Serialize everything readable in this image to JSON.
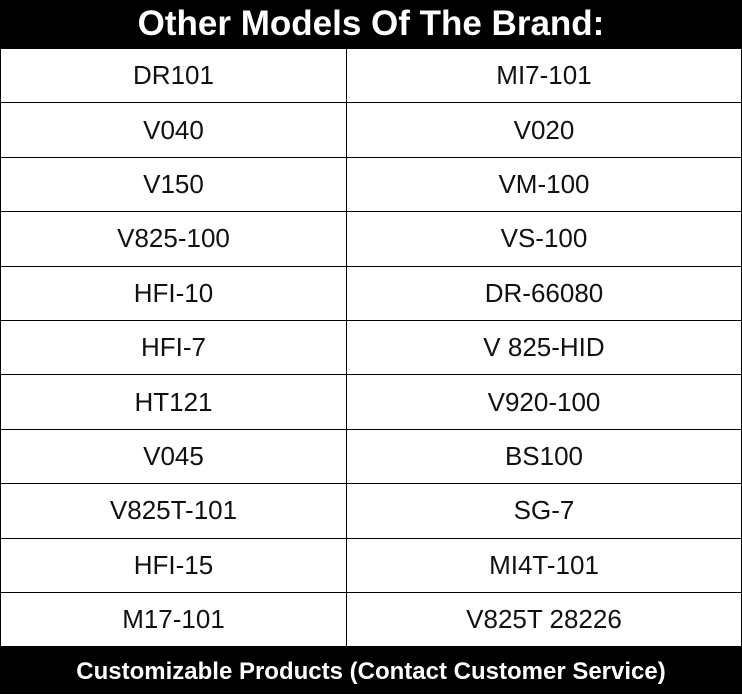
{
  "header": {
    "title": "Other Models Of The Brand:"
  },
  "table": {
    "rows": [
      [
        "DR101",
        "MI7-101"
      ],
      [
        "V040",
        "V020"
      ],
      [
        "V150",
        "VM-100"
      ],
      [
        "V825-100",
        "VS-100"
      ],
      [
        "HFI-10",
        "DR-66080"
      ],
      [
        "HFI-7",
        "V 825-HID"
      ],
      [
        "HT121",
        "V920-100"
      ],
      [
        "V045",
        "BS100"
      ],
      [
        "V825T-101",
        "SG-7"
      ],
      [
        "HFI-15",
        "MI4T-101"
      ],
      [
        "M17-101",
        "V825T 28226"
      ]
    ]
  },
  "footer": {
    "text": "Customizable Products (Contact Customer Service)"
  }
}
